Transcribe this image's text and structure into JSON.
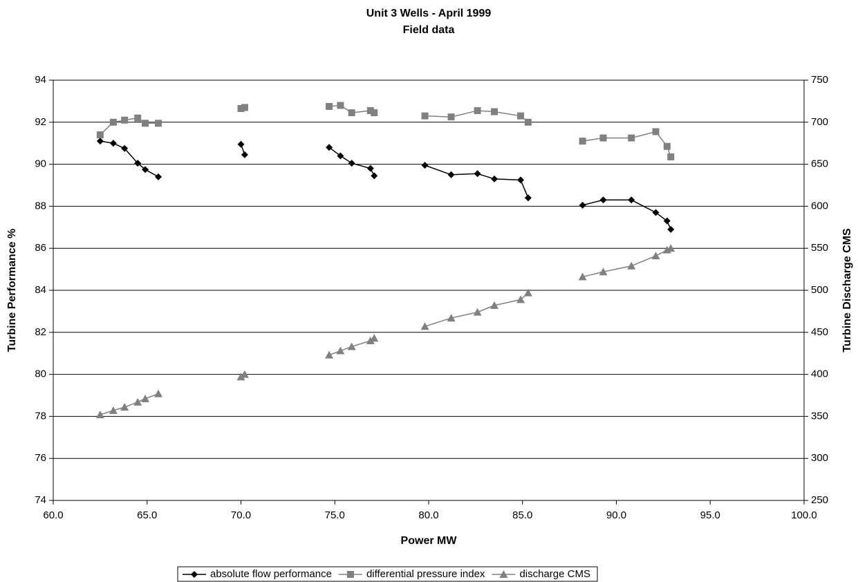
{
  "chart_data": {
    "type": "line",
    "title": "Unit 3 Wells - April 1999",
    "subtitle": "Field data",
    "x_label": "Power MW",
    "y_label": "Turbine Performance %",
    "y2_label": "Turbine Discharge CMS",
    "x": [
      62.5,
      63.2,
      63.8,
      64.5,
      64.9,
      65.6,
      null,
      70.0,
      70.2,
      null,
      74.7,
      75.3,
      75.9,
      76.9,
      77.1,
      null,
      79.8,
      81.2,
      82.6,
      83.5,
      84.9,
      85.3,
      null,
      88.2,
      89.3,
      90.8,
      92.1,
      92.7,
      92.9
    ],
    "series": [
      {
        "name": "absolute flow performance",
        "color": "#000000",
        "marker": "diamond",
        "values": [
          91.1,
          91.0,
          90.75,
          90.05,
          89.75,
          89.4,
          null,
          90.95,
          90.45,
          null,
          90.8,
          90.4,
          90.05,
          89.8,
          89.45,
          null,
          89.95,
          89.5,
          89.55,
          89.3,
          89.25,
          88.4,
          null,
          88.05,
          88.3,
          88.3,
          87.7,
          87.3,
          86.9
        ]
      },
      {
        "name": "differential pressure index",
        "color": "#808080",
        "marker": "square",
        "values": [
          91.4,
          92.0,
          92.1,
          92.2,
          91.95,
          91.95,
          null,
          92.65,
          92.7,
          null,
          92.75,
          92.8,
          92.45,
          92.55,
          92.45,
          null,
          92.3,
          92.25,
          92.55,
          92.5,
          92.3,
          92.0,
          null,
          91.1,
          91.25,
          91.25,
          91.55,
          90.85,
          90.35
        ]
      },
      {
        "name": "discharge CMS",
        "color": "#808080",
        "marker": "triangle",
        "axis": "y2",
        "values": [
          352,
          357,
          361,
          367,
          371,
          377,
          null,
          397,
          400,
          null,
          423,
          428,
          433,
          440,
          443,
          null,
          457,
          467,
          474,
          482,
          489,
          497,
          null,
          516,
          522,
          529,
          541,
          548,
          550
        ]
      }
    ],
    "xlim": [
      60,
      100
    ],
    "xticks": [
      {
        "value": 60,
        "label": "60.0"
      },
      {
        "value": 65,
        "label": "65.0"
      },
      {
        "value": 70,
        "label": "70.0"
      },
      {
        "value": 75,
        "label": "75.0"
      },
      {
        "value": 80,
        "label": "80.0"
      },
      {
        "value": 85,
        "label": "85.0"
      },
      {
        "value": 90,
        "label": "90.0"
      },
      {
        "value": 95,
        "label": "95.0"
      },
      {
        "value": 100,
        "label": "100.0"
      }
    ],
    "ylim": [
      74,
      94
    ],
    "yticks": [
      74,
      76,
      78,
      80,
      82,
      84,
      86,
      88,
      90,
      92,
      94
    ],
    "y2lim": [
      250,
      750
    ],
    "y2ticks": [
      250,
      300,
      350,
      400,
      450,
      500,
      550,
      600,
      650,
      700,
      750
    ],
    "grid": true,
    "legend": "bottom"
  }
}
